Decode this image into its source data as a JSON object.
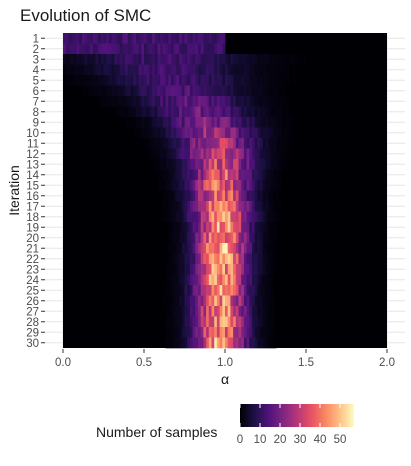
{
  "chart_data": {
    "type": "heatmap",
    "title": "Evolution of SMC",
    "xlabel": "α",
    "ylabel": "Iteration",
    "x_ticks": [
      "0.0",
      "0.5",
      "1.0",
      "1.5",
      "2.0"
    ],
    "x_range": [
      0,
      2
    ],
    "y_categories": [
      "1",
      "2",
      "3",
      "4",
      "5",
      "6",
      "7",
      "8",
      "9",
      "10",
      "11",
      "12",
      "13",
      "14",
      "15",
      "16",
      "17",
      "18",
      "19",
      "20",
      "21",
      "22",
      "23",
      "24",
      "25",
      "26",
      "27",
      "28",
      "29",
      "30"
    ],
    "colorscale": "magma",
    "legend": {
      "title": "Number of samples",
      "ticks": [
        "0",
        "10",
        "20",
        "30",
        "40",
        "50"
      ],
      "range": [
        0,
        57
      ],
      "position": "bottom"
    },
    "grid": true,
    "density_model": {
      "description_of_values": "Per-iteration sample counts across α bins (approximate): early iterations spread ~uniform over [0,1] at low counts; later iterations concentrate near α≈1.0 with peak ~50.",
      "iteration_centers": [
        0.5,
        0.55,
        0.6,
        0.65,
        0.7,
        0.75,
        0.8,
        0.85,
        0.9,
        0.93,
        0.95,
        0.96,
        0.97,
        0.97,
        0.97,
        0.97,
        0.98,
        0.98,
        0.98,
        0.98,
        0.98,
        0.98,
        0.98,
        0.97,
        0.97,
        0.97,
        0.97,
        0.97,
        0.97,
        0.97
      ],
      "iteration_widths": [
        0.5,
        0.4,
        0.34,
        0.3,
        0.27,
        0.24,
        0.22,
        0.2,
        0.18,
        0.17,
        0.16,
        0.15,
        0.14,
        0.13,
        0.13,
        0.12,
        0.12,
        0.12,
        0.11,
        0.11,
        0.11,
        0.11,
        0.11,
        0.11,
        0.11,
        0.11,
        0.11,
        0.11,
        0.11,
        0.11
      ],
      "iteration_peaks": [
        12,
        12,
        12,
        12,
        13,
        14,
        16,
        18,
        22,
        26,
        28,
        32,
        34,
        36,
        38,
        40,
        42,
        44,
        45,
        46,
        48,
        47,
        46,
        46,
        45,
        45,
        44,
        44,
        44,
        44
      ]
    }
  }
}
